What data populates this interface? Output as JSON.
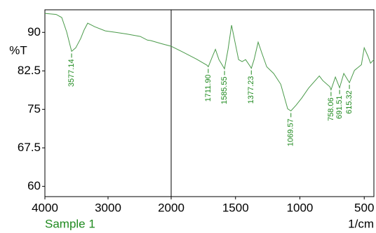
{
  "chart_data": {
    "type": "line",
    "y_label": "%T",
    "x_label": "1/cm",
    "sample_label": "Sample 1",
    "x": [
      4000,
      3822,
      3733,
      3656,
      3600,
      3577.14,
      3511,
      3433,
      3378,
      3322,
      3211,
      3044,
      2878,
      2711,
      2489,
      2378,
      2322,
      2156,
      2000,
      1913,
      1804,
      1722,
      1711.9,
      1678,
      1656,
      1629,
      1602,
      1585.55,
      1558,
      1531,
      1504,
      1476,
      1449,
      1422,
      1384,
      1377.23,
      1356,
      1324,
      1296,
      1258,
      1204,
      1149,
      1095,
      1069.57,
      1030,
      986,
      931,
      849,
      822,
      767,
      758.06,
      724,
      691.51,
      659,
      615.32,
      576,
      522,
      500,
      472,
      451,
      425
    ],
    "values": [
      93.7,
      93.5,
      92.9,
      90.1,
      87.4,
      86.3,
      87.0,
      88.8,
      90.5,
      91.8,
      91.1,
      90.3,
      90.0,
      89.7,
      89.2,
      88.5,
      88.4,
      87.8,
      87.3,
      86.2,
      84.8,
      83.6,
      83.3,
      85.4,
      86.7,
      84.7,
      83.6,
      82.9,
      86.7,
      91.4,
      88.1,
      84.7,
      84.3,
      84.7,
      83.3,
      83.0,
      84.7,
      88.1,
      86.0,
      83.3,
      82.0,
      79.9,
      75.1,
      74.7,
      75.8,
      77.2,
      79.2,
      81.5,
      80.6,
      79.4,
      78.8,
      81.3,
      79.2,
      82.0,
      80.2,
      82.6,
      83.7,
      87.0,
      85.4,
      84.0,
      84.7
    ],
    "color": "#4a9a4a",
    "peaks": [
      {
        "value": 3577.14,
        "label": "3577.14"
      },
      {
        "value": 1711.9,
        "label": "1711.90"
      },
      {
        "value": 1585.55,
        "label": "1585.55"
      },
      {
        "value": 1377.23,
        "label": "1377.23"
      },
      {
        "value": 1069.57,
        "label": "1069.57"
      },
      {
        "value": 758.06,
        "label": "758.06"
      },
      {
        "value": 691.51,
        "label": "691.51"
      },
      {
        "value": 615.32,
        "label": "615.32"
      }
    ],
    "label_color": "#1f8a1f",
    "xlim": [
      4000,
      425
    ],
    "scale_break": 2000,
    "xticks": [
      4000,
      3000,
      2000,
      1500,
      1000,
      500
    ],
    "ylim": [
      58,
      94.4
    ],
    "yticks": [
      60,
      67.5,
      75,
      82.5,
      90
    ]
  }
}
